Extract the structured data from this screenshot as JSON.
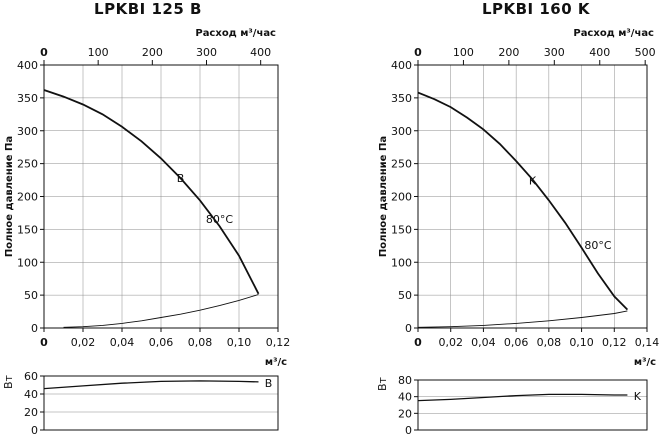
{
  "chart_data": [
    {
      "type": "line",
      "title": "LPKBI 125 B",
      "top_axis": {
        "label": "Расход м³/час",
        "ticks": [
          "0",
          "100",
          "200",
          "300",
          "400"
        ],
        "lim": [
          0,
          432
        ]
      },
      "x": {
        "label": "м³/с",
        "ticks": [
          "0",
          "0,02",
          "0,04",
          "0,06",
          "0,08",
          "0,10",
          "0,12"
        ],
        "lim": [
          0,
          0.12
        ]
      },
      "y": {
        "label": "Полное давление Па",
        "ticks": [
          "0",
          "50",
          "100",
          "150",
          "200",
          "250",
          "300",
          "350",
          "400"
        ],
        "lim": [
          0,
          400
        ]
      },
      "grid": true,
      "series": [
        {
          "name": "B",
          "role": "fan",
          "points": [
            [
              0,
              362
            ],
            [
              0.01,
              352
            ],
            [
              0.02,
              340
            ],
            [
              0.03,
              325
            ],
            [
              0.04,
              306
            ],
            [
              0.05,
              284
            ],
            [
              0.06,
              258
            ],
            [
              0.07,
              228
            ],
            [
              0.08,
              194
            ],
            [
              0.09,
              155
            ],
            [
              0.1,
              110
            ],
            [
              0.11,
              52
            ]
          ]
        },
        {
          "role": "system",
          "points": [
            [
              0.01,
              1
            ],
            [
              0.02,
              2
            ],
            [
              0.03,
              4
            ],
            [
              0.04,
              7
            ],
            [
              0.05,
              11
            ],
            [
              0.06,
              16
            ],
            [
              0.07,
              21
            ],
            [
              0.08,
              27
            ],
            [
              0.09,
              34
            ],
            [
              0.1,
              42
            ],
            [
              0.11,
              51
            ]
          ]
        }
      ],
      "annotations": [
        {
          "text": "B",
          "x": 0.07,
          "y": 222
        },
        {
          "text": "80°C",
          "x": 0.09,
          "y": 160
        }
      ],
      "power": {
        "ylabel": "Вт",
        "ticks": [
          "0",
          "20",
          "40",
          "60"
        ],
        "ylim": [
          0,
          60
        ],
        "name": "B",
        "points": [
          [
            0,
            46
          ],
          [
            0.02,
            49
          ],
          [
            0.04,
            52
          ],
          [
            0.06,
            54
          ],
          [
            0.08,
            54.5
          ],
          [
            0.1,
            54
          ],
          [
            0.11,
            53.5
          ]
        ]
      }
    },
    {
      "type": "line",
      "title": "LPKBI 160 K",
      "top_axis": {
        "label": "Расход м³/час",
        "ticks": [
          "0",
          "100",
          "200",
          "300",
          "400",
          "500"
        ],
        "lim": [
          0,
          504
        ]
      },
      "x": {
        "label": "м³/с",
        "ticks": [
          "0",
          "0,02",
          "0,04",
          "0,06",
          "0,08",
          "0,10",
          "0,12",
          "0,14"
        ],
        "lim": [
          0,
          0.14
        ]
      },
      "y": {
        "label": "Полное давление Па",
        "ticks": [
          "0",
          "50",
          "100",
          "150",
          "200",
          "250",
          "300",
          "350",
          "400"
        ],
        "lim": [
          0,
          400
        ]
      },
      "grid": true,
      "series": [
        {
          "name": "K",
          "role": "fan",
          "points": [
            [
              0,
              358
            ],
            [
              0.01,
              348
            ],
            [
              0.02,
              336
            ],
            [
              0.03,
              320
            ],
            [
              0.04,
              302
            ],
            [
              0.05,
              280
            ],
            [
              0.06,
              254
            ],
            [
              0.07,
              226
            ],
            [
              0.08,
              194
            ],
            [
              0.09,
              160
            ],
            [
              0.1,
              122
            ],
            [
              0.11,
              83
            ],
            [
              0.12,
              48
            ],
            [
              0.128,
              28
            ]
          ]
        },
        {
          "role": "system",
          "points": [
            [
              0,
              1
            ],
            [
              0.02,
              2
            ],
            [
              0.04,
              4
            ],
            [
              0.06,
              7
            ],
            [
              0.08,
              11
            ],
            [
              0.1,
              16
            ],
            [
              0.12,
              22
            ],
            [
              0.128,
              26
            ]
          ]
        }
      ],
      "annotations": [
        {
          "text": "K",
          "x": 0.07,
          "y": 218
        },
        {
          "text": "80°C",
          "x": 0.11,
          "y": 120
        }
      ],
      "power": {
        "ylabel": "Вт",
        "ticks": [
          "0",
          "20",
          "40",
          "80"
        ],
        "ylim": [
          0,
          80
        ],
        "name": "K",
        "points": [
          [
            0,
            47
          ],
          [
            0.02,
            49
          ],
          [
            0.04,
            52
          ],
          [
            0.06,
            55
          ],
          [
            0.08,
            57
          ],
          [
            0.1,
            57
          ],
          [
            0.12,
            56
          ],
          [
            0.128,
            56
          ]
        ]
      }
    }
  ]
}
